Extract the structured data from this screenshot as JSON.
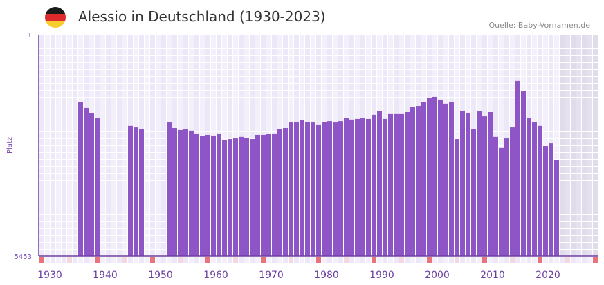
{
  "header": {
    "title": "Alessio in Deutschland (1930-2023)",
    "source": "Quelle: Baby-Vornamen.de",
    "flag_icon": "germany-flag-icon",
    "flag_colors": [
      "#1a1a1a",
      "#dd2a2a",
      "#f8cc2c"
    ]
  },
  "chart_data": {
    "type": "bar",
    "title": "Alessio in Deutschland (1930-2023)",
    "ylabel": "Platz",
    "y_axis": {
      "top_label": "1",
      "bottom_label": "5453",
      "inverted": true,
      "note": "bar_level = fraction of axis height (rank 5453 = 0, rank 1 = 1)"
    },
    "x_range": [
      1928,
      2028
    ],
    "x_ticks": [
      "1930",
      "1940",
      "1950",
      "1960",
      "1970",
      "1980",
      "1990",
      "2000",
      "2010",
      "2020"
    ],
    "future_shaded_from": 2022,
    "start_year": 1935,
    "bar_level": [
      0.694,
      0.669,
      0.644,
      0.622,
      null,
      null,
      null,
      null,
      null,
      0.588,
      0.581,
      0.575,
      null,
      null,
      null,
      null,
      0.603,
      0.578,
      0.569,
      0.575,
      0.566,
      0.553,
      0.541,
      0.547,
      0.544,
      0.55,
      0.522,
      0.528,
      0.531,
      0.538,
      0.534,
      0.528,
      0.547,
      0.547,
      0.55,
      0.553,
      0.572,
      0.578,
      0.603,
      0.603,
      0.613,
      0.606,
      0.603,
      0.594,
      0.606,
      0.609,
      0.603,
      0.609,
      0.622,
      0.616,
      0.619,
      0.622,
      0.619,
      0.638,
      0.656,
      0.619,
      0.641,
      0.641,
      0.641,
      0.65,
      0.672,
      0.678,
      0.694,
      0.716,
      0.719,
      0.706,
      0.688,
      0.694,
      0.528,
      0.656,
      0.647,
      0.575,
      0.653,
      0.631,
      0.65,
      0.538,
      0.488,
      0.531,
      0.581,
      0.791,
      0.744,
      0.625,
      0.606,
      0.588,
      0.497,
      0.509,
      0.434
    ],
    "colors": {
      "bar": "#8e55c6",
      "axis": "#6b3fa0",
      "marker_decade": "#e8737a",
      "marker_half": "#f3d7e1",
      "future": "#e4dfee"
    }
  }
}
